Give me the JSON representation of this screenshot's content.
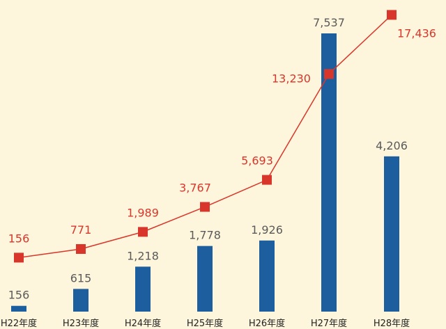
{
  "chart_data": {
    "type": "bar",
    "categories": [
      "H22年度",
      "H23年度",
      "H24年度",
      "H25年度",
      "H26年度",
      "H27年度",
      "H28年度"
    ],
    "series": [
      {
        "type": "bar",
        "values": [
          156,
          615,
          1218,
          1778,
          1926,
          7537,
          4206
        ],
        "labels": [
          "156",
          "615",
          "1,218",
          "1,778",
          "1,926",
          "7,537",
          "4,206"
        ],
        "color": "#1d5e9e"
      },
      {
        "type": "line",
        "values": [
          156,
          771,
          1989,
          3767,
          5693,
          13230,
          17436
        ],
        "labels": [
          "156",
          "771",
          "1,989",
          "3,767",
          "5,693",
          "13,230",
          "17,436"
        ],
        "color": "#d9362b"
      }
    ],
    "background": "#fdf6dc",
    "grid": false,
    "legend": "none"
  }
}
